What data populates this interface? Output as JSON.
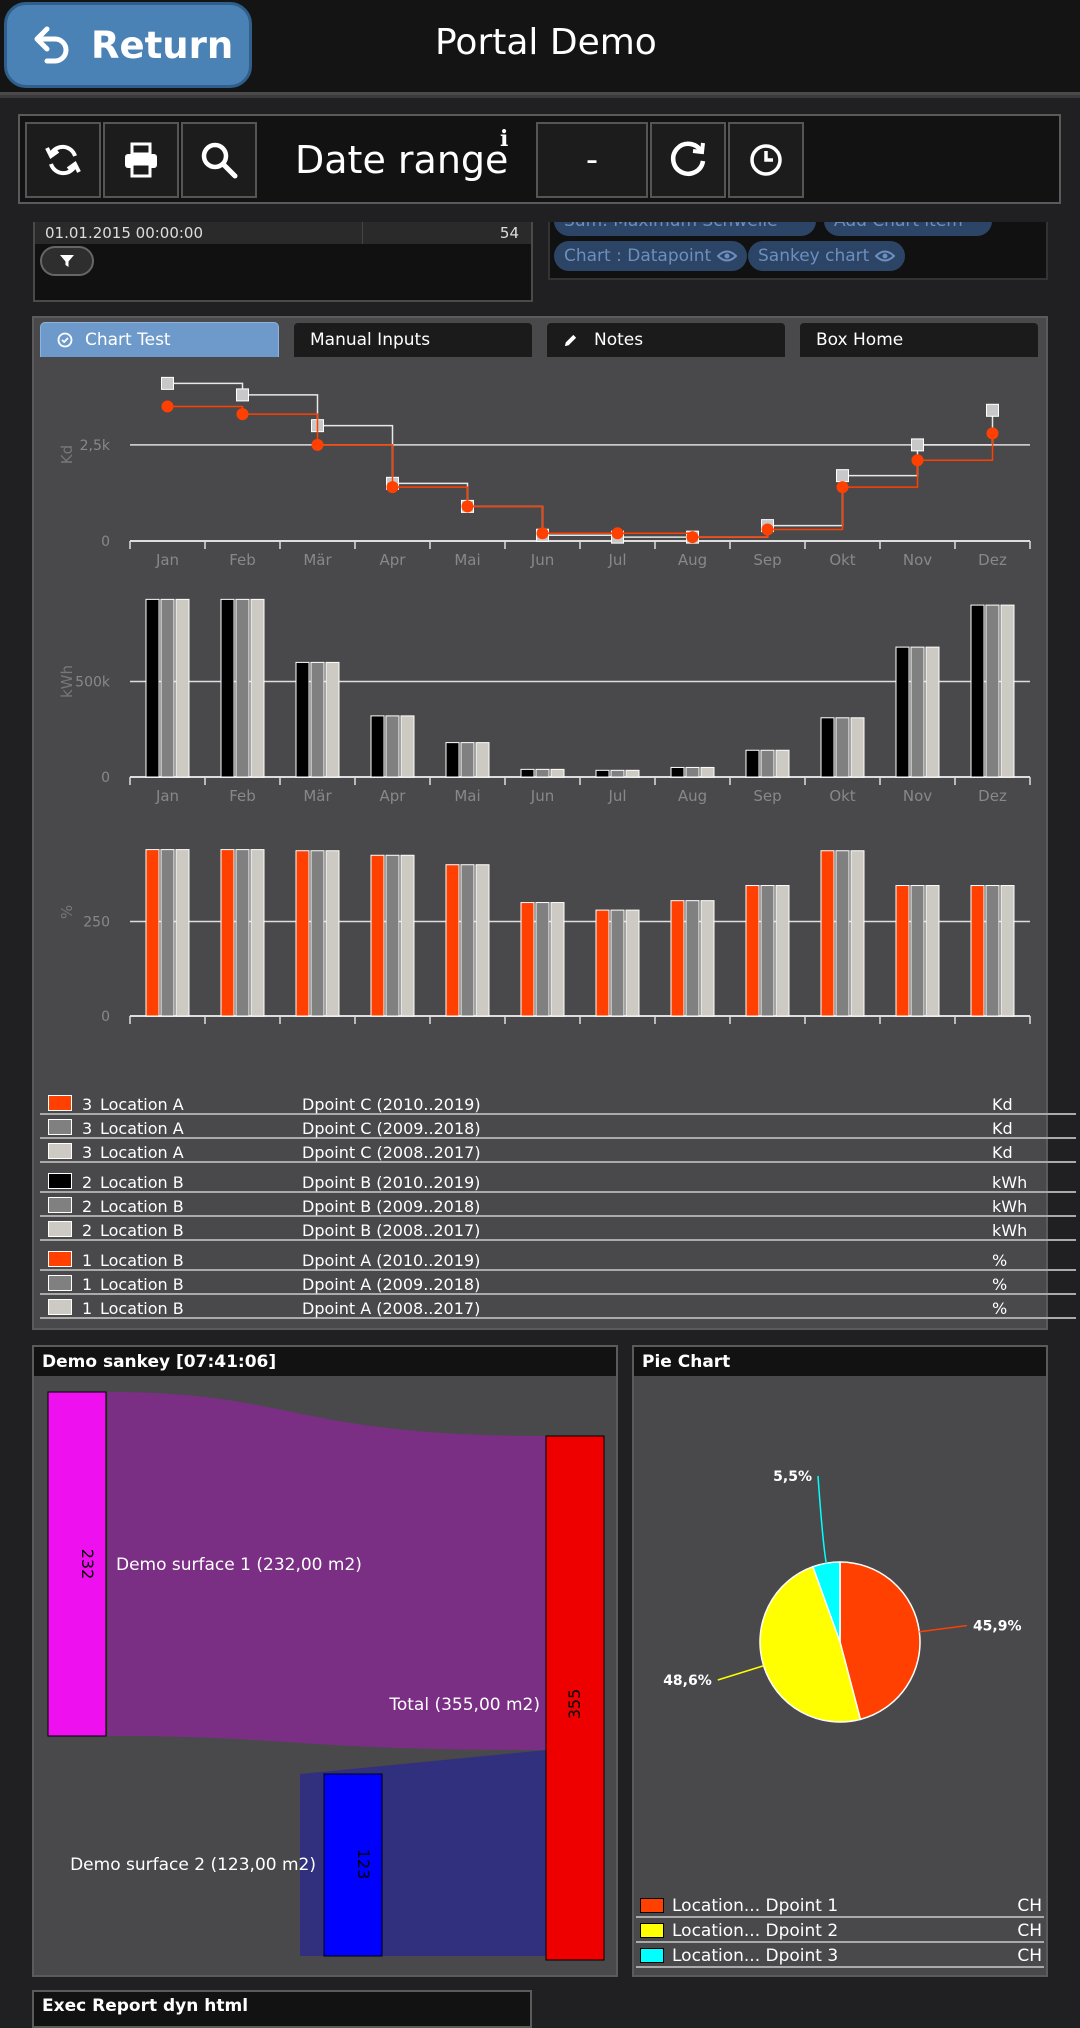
{
  "header": {
    "return_label": "Return",
    "title": "Portal Demo"
  },
  "toolbar": {
    "date_range_label": "Date range",
    "info_symbol": "i",
    "range_value": "-"
  },
  "left_panel": {
    "row_date": "01.01.2015 00:00:00",
    "row_value": "54"
  },
  "chips": {
    "top_partial": "Sum: Maximum Schwelle",
    "top_partial2": "Add Chart item",
    "chip1": "Chart : Datapoint",
    "chip2": "Sankey chart"
  },
  "tabs": [
    "Chart Test",
    "Manual Inputs",
    "Notes",
    "Box Home"
  ],
  "chart_data": [
    {
      "type": "line",
      "step": true,
      "categories": [
        "Jan",
        "Feb",
        "Mär",
        "Apr",
        "Mai",
        "Jun",
        "Jul",
        "Aug",
        "Sep",
        "Okt",
        "Nov",
        "Dez"
      ],
      "ylabel": "Kd",
      "yticks": [
        "0",
        "2,5k"
      ],
      "ylim": [
        0,
        4500
      ],
      "series": [
        {
          "color": "#e8e8e8",
          "marker": "square",
          "values": [
            4100,
            3800,
            3000,
            1500,
            900,
            150,
            100,
            100,
            400,
            1700,
            2500,
            3400
          ]
        },
        {
          "color": "#ff4000",
          "marker": "circle",
          "values": [
            3500,
            3300,
            2500,
            1400,
            900,
            200,
            200,
            100,
            300,
            1400,
            2100,
            2800
          ]
        }
      ]
    },
    {
      "type": "bar",
      "categories": [
        "Jan",
        "Feb",
        "Mär",
        "Apr",
        "Mai",
        "Jun",
        "Jul",
        "Aug",
        "Sep",
        "Okt",
        "Nov",
        "Dez"
      ],
      "ylabel": "kWh",
      "yticks": [
        "0",
        "500k"
      ],
      "ylim": [
        0,
        1000000
      ],
      "series": [
        {
          "color": "#000000",
          "values": [
            930000,
            930000,
            600000,
            320000,
            180000,
            40000,
            35000,
            50000,
            140000,
            310000,
            680000,
            900000
          ]
        },
        {
          "color": "#808080",
          "values": [
            930000,
            930000,
            600000,
            320000,
            180000,
            40000,
            35000,
            50000,
            140000,
            310000,
            680000,
            900000
          ]
        },
        {
          "color": "#cdc9c3",
          "values": [
            930000,
            930000,
            600000,
            320000,
            180000,
            40000,
            35000,
            50000,
            140000,
            310000,
            680000,
            900000
          ]
        }
      ]
    },
    {
      "type": "bar",
      "categories": [
        "Jan",
        "Feb",
        "Mär",
        "Apr",
        "Mai",
        "Jun",
        "Jul",
        "Aug",
        "Sep",
        "Okt",
        "Nov",
        "Dez"
      ],
      "ylabel": "%",
      "yticks": [
        "0",
        "250"
      ],
      "ylim": [
        0,
        550
      ],
      "series": [
        {
          "color": "#ff4000",
          "values": [
            440,
            440,
            437,
            425,
            400,
            300,
            280,
            305,
            345,
            437,
            345,
            345
          ]
        },
        {
          "color": "#808080",
          "values": [
            440,
            440,
            437,
            425,
            400,
            300,
            280,
            305,
            345,
            437,
            345,
            345
          ]
        },
        {
          "color": "#cdc9c3",
          "values": [
            440,
            440,
            437,
            425,
            400,
            300,
            280,
            305,
            345,
            437,
            345,
            345
          ]
        }
      ]
    },
    {
      "type": "pie",
      "title": "Pie Chart",
      "slices": [
        {
          "label": "45,9%",
          "value": 45.9,
          "color": "#ff4000"
        },
        {
          "label": "48,6%",
          "value": 48.6,
          "color": "#ffff00"
        },
        {
          "label": "5,5%",
          "value": 5.5,
          "color": "#00ffff"
        }
      ]
    }
  ],
  "legend": [
    {
      "color": "#ff4000",
      "num": "3",
      "loc": "Location A",
      "dp": "Dpoint C (2010..2019)",
      "unit": "Kd"
    },
    {
      "color": "#808080",
      "num": "3",
      "loc": "Location A",
      "dp": "Dpoint C (2009..2018)",
      "unit": "Kd"
    },
    {
      "color": "#cdc9c3",
      "num": "3",
      "loc": "Location A",
      "dp": "Dpoint C (2008..2017)",
      "unit": "Kd"
    },
    {
      "color": "#000000",
      "num": "2",
      "loc": "Location B",
      "dp": "Dpoint B (2010..2019)",
      "unit": "kWh"
    },
    {
      "color": "#808080",
      "num": "2",
      "loc": "Location B",
      "dp": "Dpoint B (2009..2018)",
      "unit": "kWh"
    },
    {
      "color": "#cdc9c3",
      "num": "2",
      "loc": "Location B",
      "dp": "Dpoint B (2008..2017)",
      "unit": "kWh"
    },
    {
      "color": "#ff4000",
      "num": "1",
      "loc": "Location B",
      "dp": "Dpoint A (2010..2019)",
      "unit": "%"
    },
    {
      "color": "#808080",
      "num": "1",
      "loc": "Location B",
      "dp": "Dpoint A (2009..2018)",
      "unit": "%"
    },
    {
      "color": "#cdc9c3",
      "num": "1",
      "loc": "Location B",
      "dp": "Dpoint A (2008..2017)",
      "unit": "%"
    }
  ],
  "sankey": {
    "title": "Demo sankey [07:41:06]",
    "node1_value": "232",
    "node1_label": "Demo surface 1 (232,00 m2)",
    "node2_value": "123",
    "node2_label": "Demo surface 2 (123,00 m2)",
    "total_value": "355",
    "total_label": "Total (355,00 m2)"
  },
  "pie": {
    "title": "Pie Chart",
    "legend": [
      {
        "color": "#ff4000",
        "text": "Location... Dpoint 1",
        "code": "CH"
      },
      {
        "color": "#ffff00",
        "text": "Location... Dpoint 2",
        "code": "CH"
      },
      {
        "color": "#00ffff",
        "text": "Location... Dpoint 3",
        "code": "CH"
      }
    ]
  },
  "footer": {
    "partial_title": "Exec Report dyn html"
  }
}
